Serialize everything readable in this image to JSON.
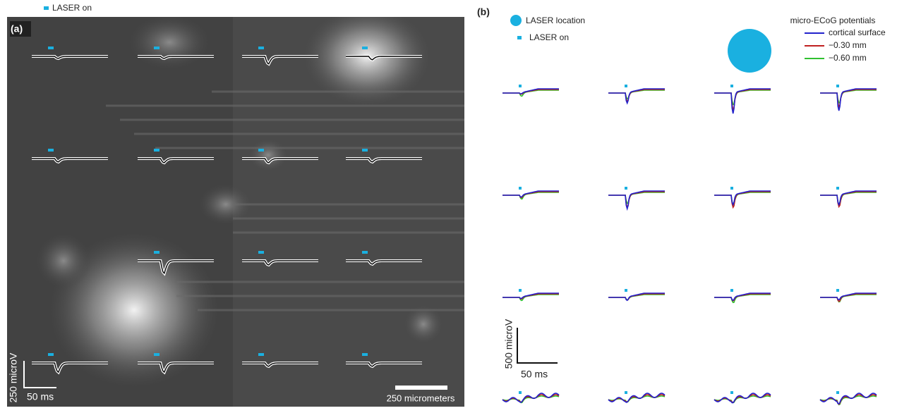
{
  "panel_a": {
    "label": "(a)",
    "laser_on": "LASER on",
    "scale_y": "250 microV",
    "scale_x": "50 ms",
    "scale_bar": "250 micrometers"
  },
  "panel_b": {
    "label": "(b)",
    "laser_location": "LASER location",
    "laser_on": "LASER on",
    "legend_title": "micro-ECoG potentials",
    "legend": [
      "cortical surface",
      "−0.30 mm",
      "−0.60 mm"
    ],
    "scale_y": "500 microV",
    "scale_x": "50 ms"
  }
}
